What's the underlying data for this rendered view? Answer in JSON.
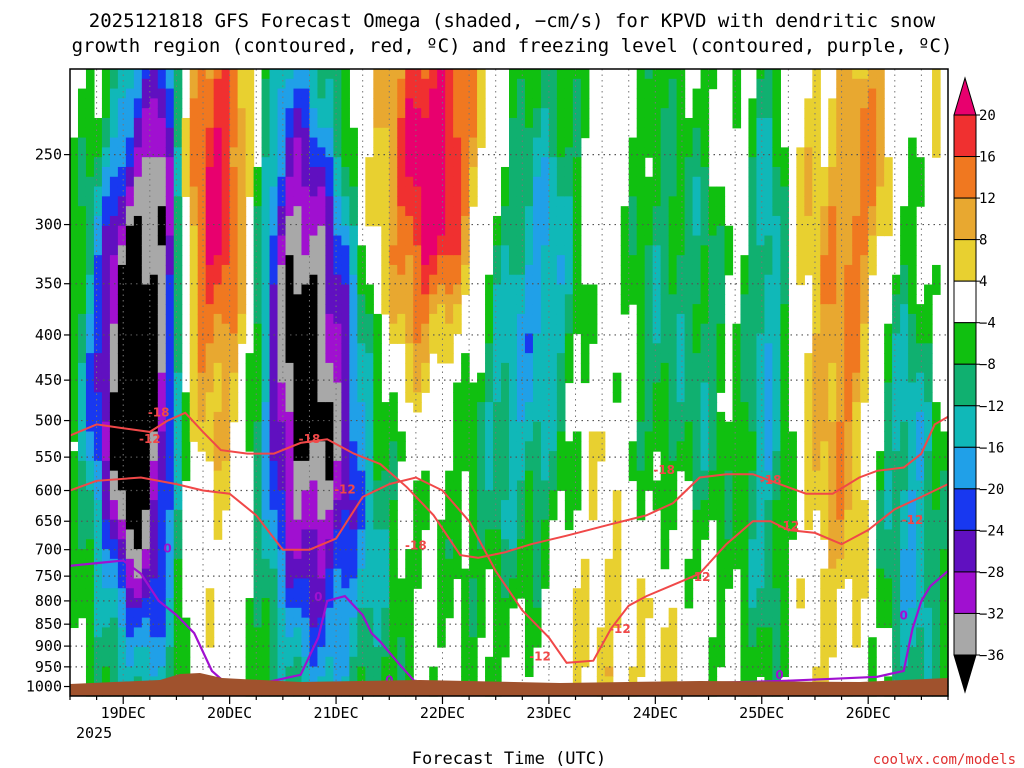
{
  "chart_data": {
    "type": "heatmap",
    "title_line1": "2025121818 GFS Forecast Omega (shaded, −cm/s) for KPVD with dendritic snow",
    "title_line2": "growth region (contoured, red, ºC) and freezing level (contoured, purple, ºC)",
    "xlabel": "Forecast Time (UTC)",
    "x_ticks": [
      "19DEC",
      "20DEC",
      "21DEC",
      "22DEC",
      "23DEC",
      "24DEC",
      "25DEC",
      "26DEC"
    ],
    "x_year": "2025",
    "x_range_hours": [
      -12,
      186
    ],
    "y_ticks": [
      250,
      300,
      350,
      400,
      450,
      500,
      550,
      600,
      650,
      700,
      750,
      800,
      850,
      900,
      950,
      1000
    ],
    "y_range_hpa": [
      200,
      1025
    ],
    "y_log": true,
    "grid": true,
    "colorbar": {
      "labels": [
        "20",
        "16",
        "12",
        "8",
        "4",
        "−4",
        "−8",
        "−12",
        "−16",
        "−20",
        "−24",
        "−28",
        "−32",
        "−36"
      ],
      "colors": [
        "#e8006e",
        "#f03030",
        "#f07820",
        "#e8a830",
        "#e8d030",
        "#ffffff",
        "#10c010",
        "#10b070",
        "#10b8b8",
        "#20a0e8",
        "#1838f0",
        "#6010c0",
        "#a010d0",
        "#a8a8a8",
        "#000000"
      ]
    },
    "contours": {
      "dgz_color": "#f04848",
      "freezing_color": "#a010d0",
      "dgz_labels": [
        "-18",
        "-12",
        "-18",
        "-12",
        "-18",
        "-12",
        "-18",
        "-12",
        "-18",
        "-12",
        "-12",
        "-12"
      ],
      "freezing_labels": [
        "0",
        "0",
        "0",
        "0",
        "0"
      ],
      "dgz_minus12": [
        [
          -12,
          600
        ],
        [
          -6,
          585
        ],
        [
          4,
          580
        ],
        [
          12,
          590
        ],
        [
          18,
          600
        ],
        [
          24,
          605
        ],
        [
          30,
          640
        ],
        [
          36,
          700
        ],
        [
          42,
          700
        ],
        [
          48,
          680
        ],
        [
          54,
          610
        ],
        [
          60,
          590
        ],
        [
          66,
          580
        ],
        [
          72,
          600
        ],
        [
          78,
          650
        ],
        [
          84,
          740
        ],
        [
          90,
          820
        ],
        [
          96,
          880
        ],
        [
          100,
          940
        ],
        [
          106,
          935
        ],
        [
          110,
          860
        ],
        [
          114,
          810
        ],
        [
          118,
          790
        ],
        [
          126,
          760
        ],
        [
          130,
          745
        ],
        [
          136,
          690
        ],
        [
          142,
          650
        ],
        [
          146,
          650
        ],
        [
          150,
          665
        ],
        [
          156,
          670
        ],
        [
          162,
          690
        ],
        [
          168,
          665
        ],
        [
          174,
          630
        ],
        [
          180,
          610
        ],
        [
          186,
          590
        ]
      ],
      "dgz_minus18": [
        [
          -12,
          520
        ],
        [
          -6,
          505
        ],
        [
          0,
          510
        ],
        [
          6,
          515
        ],
        [
          10,
          500
        ],
        [
          14,
          490
        ],
        [
          18,
          515
        ],
        [
          22,
          540
        ],
        [
          28,
          545
        ],
        [
          34,
          545
        ],
        [
          40,
          530
        ],
        [
          46,
          525
        ],
        [
          52,
          545
        ],
        [
          58,
          560
        ],
        [
          64,
          595
        ],
        [
          70,
          640
        ],
        [
          76,
          710
        ],
        [
          80,
          715
        ],
        [
          86,
          705
        ],
        [
          92,
          690
        ],
        [
          100,
          675
        ],
        [
          110,
          655
        ],
        [
          118,
          640
        ],
        [
          124,
          620
        ],
        [
          130,
          580
        ],
        [
          136,
          575
        ],
        [
          142,
          575
        ],
        [
          148,
          590
        ],
        [
          154,
          605
        ],
        [
          160,
          605
        ],
        [
          166,
          580
        ],
        [
          170,
          570
        ],
        [
          176,
          565
        ],
        [
          180,
          545
        ],
        [
          183,
          505
        ],
        [
          186,
          495
        ]
      ],
      "freezing_0": [
        [
          -12,
          730
        ],
        [
          -6,
          725
        ],
        [
          0,
          720
        ],
        [
          4,
          745
        ],
        [
          8,
          800
        ],
        [
          12,
          830
        ],
        [
          16,
          870
        ],
        [
          20,
          960
        ],
        [
          24,
          1000
        ]
      ],
      "freezing_0_b": [
        [
          28,
          1000
        ],
        [
          40,
          970
        ],
        [
          44,
          880
        ],
        [
          46,
          800
        ],
        [
          50,
          790
        ],
        [
          54,
          830
        ],
        [
          56,
          870
        ],
        [
          58,
          890
        ],
        [
          62,
          940
        ],
        [
          66,
          990
        ]
      ],
      "freezing_0_c": [
        [
          128,
          1000
        ],
        [
          134,
          990
        ],
        [
          150,
          985
        ],
        [
          160,
          980
        ],
        [
          170,
          975
        ],
        [
          176,
          960
        ],
        [
          178,
          860
        ],
        [
          180,
          800
        ],
        [
          182,
          770
        ],
        [
          186,
          740
        ]
      ]
    }
  },
  "credit": "coolwx.com/models"
}
